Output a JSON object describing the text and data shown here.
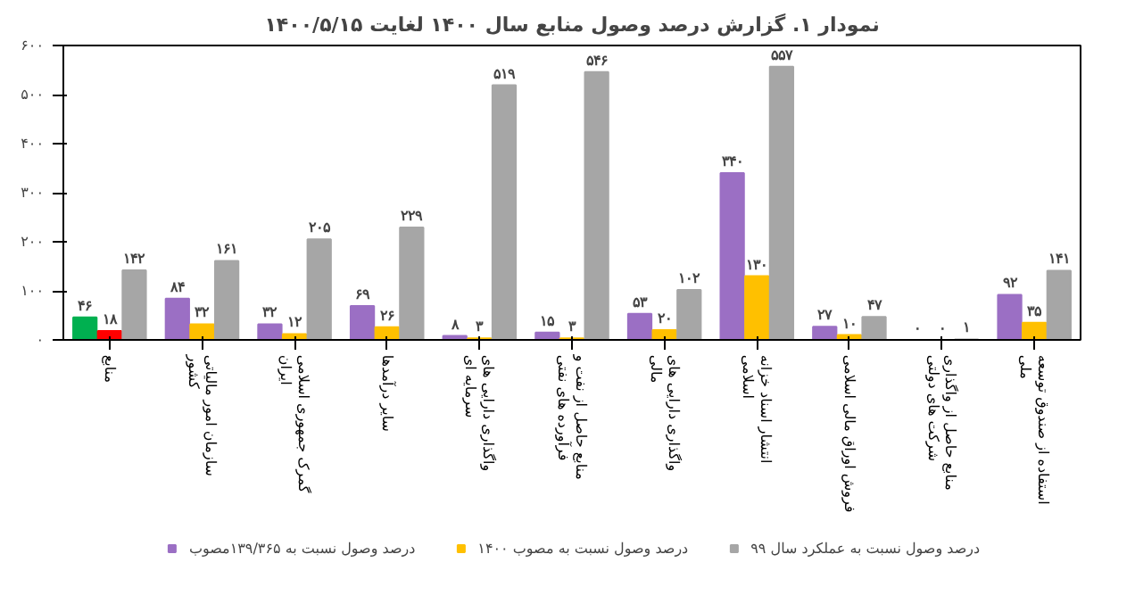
{
  "chart_data": {
    "type": "bar",
    "title": "نمودار ۱. گزارش درصد وصول منابع سال ۱۴۰۰ لغایت ۱۴۰۰/۵/۱۵",
    "categories": [
      "منابع",
      "سازمان امور مالیاتی کشور",
      "گمرک جمهوری اسلامی ایران",
      "سایر درآمدها",
      "واگذاری دارایی های سرمایه ای",
      "منابع حاصل از نفت و فرآورده های نفتی",
      "واگذاری دارایی های مالی",
      "انتشار اسناد خزانه اسلامی",
      "فروش اوراق مالی اسلامی",
      "منابع حاصل از واگذاری شرکت های دولتی",
      "استفاده از صندوق توسعه ملی"
    ],
    "series": [
      {
        "name": "درصد وصول نسبت به ۱۳۹/۳۶۵مصوب",
        "color": "#9b6fc4",
        "colors": [
          "#00b050",
          "#9b6fc4",
          "#9b6fc4",
          "#9b6fc4",
          "#9b6fc4",
          "#9b6fc4",
          "#9b6fc4",
          "#9b6fc4",
          "#9b6fc4",
          "#9b6fc4",
          "#9b6fc4"
        ],
        "values": [
          46,
          84,
          32,
          69,
          8,
          15,
          53,
          340,
          27,
          0,
          92
        ],
        "value_labels": [
          "۴۶",
          "۸۴",
          "۳۲",
          "۶۹",
          "۸",
          "۱۵",
          "۵۳",
          "۳۴۰",
          "۲۷",
          "۰",
          "۹۲"
        ]
      },
      {
        "name": "درصد وصول نسبت به مصوب ۱۴۰۰",
        "color": "#ffc000",
        "colors": [
          "#ff0000",
          "#ffc000",
          "#ffc000",
          "#ffc000",
          "#ffc000",
          "#ffc000",
          "#ffc000",
          "#ffc000",
          "#ffc000",
          "#ffc000",
          "#ffc000"
        ],
        "values": [
          18,
          32,
          12,
          26,
          3,
          3,
          20,
          130,
          10,
          0,
          35
        ],
        "value_labels": [
          "۱۸",
          "۳۲",
          "۱۲",
          "۲۶",
          "۳",
          "۳",
          "۲۰",
          "۱۳۰",
          "۱۰",
          "۰",
          "۳۵"
        ]
      },
      {
        "name": "درصد وصول نسبت به عملکرد سال ۹۹",
        "color": "#a6a6a6",
        "values": [
          142,
          161,
          205,
          229,
          519,
          546,
          102,
          557,
          47,
          1,
          141
        ],
        "value_labels": [
          "۱۴۲",
          "۱۶۱",
          "۲۰۵",
          "۲۲۹",
          "۵۱۹",
          "۵۴۶",
          "۱۰۲",
          "۵۵۷",
          "۴۷",
          "۱",
          "۱۴۱"
        ]
      }
    ],
    "ylim": [
      0,
      600
    ],
    "yticks": [
      {
        "value": 0,
        "label": "۰"
      },
      {
        "value": 100,
        "label": "۱۰۰"
      },
      {
        "value": 200,
        "label": "۲۰۰"
      },
      {
        "value": 300,
        "label": "۳۰۰"
      },
      {
        "value": 400,
        "label": "۴۰۰"
      },
      {
        "value": 500,
        "label": "۵۰۰"
      },
      {
        "value": 600,
        "label": "۶۰۰"
      }
    ],
    "grid": false,
    "legend": "bottom"
  }
}
